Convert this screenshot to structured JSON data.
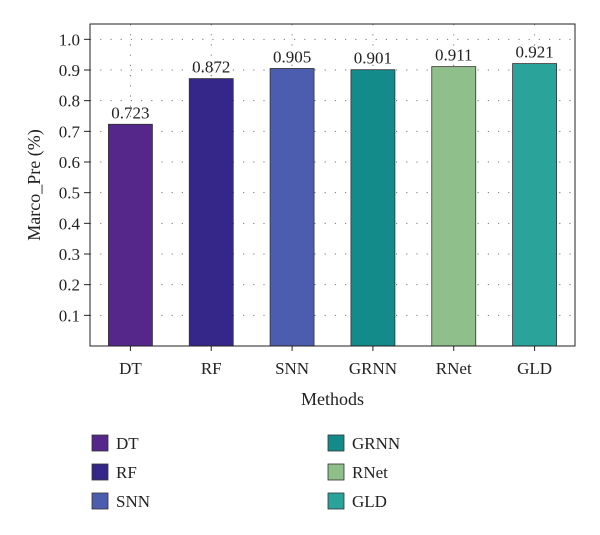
{
  "chart_data": {
    "type": "bar",
    "title": "",
    "xlabel": "Methods",
    "ylabel": "Marco_Pre (%)",
    "categories": [
      "DT",
      "RF",
      "SNN",
      "GRNN",
      "RNet",
      "GLD"
    ],
    "values": [
      0.723,
      0.872,
      0.905,
      0.901,
      0.911,
      0.921
    ],
    "data_labels": [
      "0.723",
      "0.872",
      "0.905",
      "0.901",
      "0.911",
      "0.921"
    ],
    "colors": [
      "#55278a",
      "#35268a",
      "#4c5db0",
      "#128b8a",
      "#8fbf8a",
      "#2aa39b"
    ],
    "ylim": [
      0,
      1.05
    ],
    "yticks": [
      0.1,
      0.2,
      0.3,
      0.4,
      0.5,
      0.6,
      0.7,
      0.8,
      0.9,
      1.0
    ],
    "ytick_labels": [
      "0.1",
      "0.2",
      "0.3",
      "0.4",
      "0.5",
      "0.6",
      "0.7",
      "0.8",
      "0.9",
      "1.0"
    ],
    "grid": true,
    "legend": {
      "placement": "bottom",
      "entries": [
        "DT",
        "RF",
        "SNN",
        "GRNN",
        "RNet",
        "GLD"
      ]
    }
  }
}
